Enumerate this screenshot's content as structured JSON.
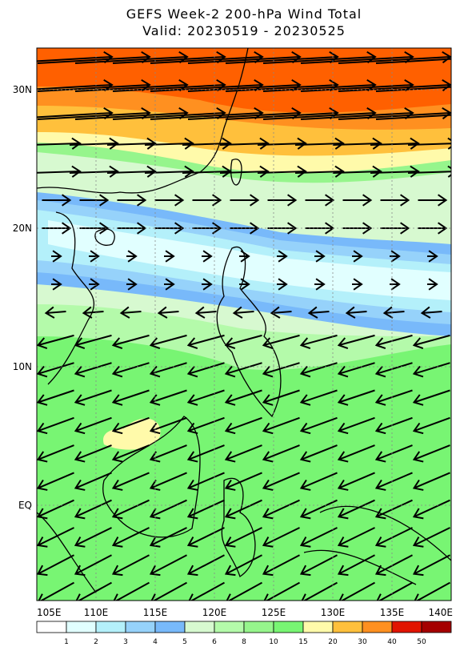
{
  "title": "GEFS Week-2 200-hPa Wind Total",
  "subtitle": "Valid: 20230519 - 20230525",
  "lat_labels": [
    "30N",
    "20N",
    "10N",
    "EQ"
  ],
  "lon_labels": [
    "105E",
    "110E",
    "115E",
    "120E",
    "125E",
    "130E",
    "135E",
    "140E"
  ],
  "colorbar": {
    "labels": [
      "1",
      "2",
      "3",
      "4",
      "5",
      "6",
      "8",
      "10",
      "15",
      "20",
      "30",
      "40",
      "50"
    ],
    "colors": [
      "#ffffff",
      "#e1ffff",
      "#b4f0fa",
      "#96d2fa",
      "#78b9fa",
      "#d7f9d0",
      "#b4faaa",
      "#96f58c",
      "#78f573",
      "#fffaaa",
      "#ffc03c",
      "#ff9020",
      "#e11400",
      "#a50000"
    ]
  }
}
